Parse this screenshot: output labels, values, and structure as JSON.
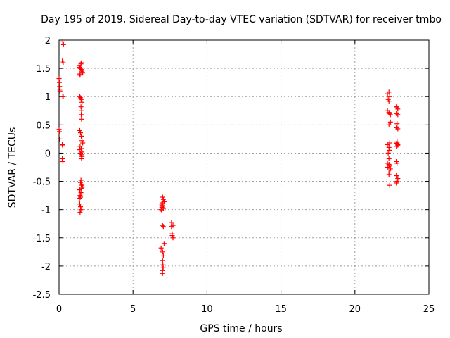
{
  "chart_data": {
    "type": "scatter",
    "title": "Day 195 of 2019, Sidereal Day-to-day VTEC variation (SDTVAR) for receiver tmbo",
    "xlabel": "GPS time / hours",
    "ylabel": "SDTVAR / TECUs",
    "xlim": [
      0,
      25
    ],
    "ylim": [
      -2.5,
      2
    ],
    "xticks": [
      0,
      5,
      10,
      15,
      20,
      25
    ],
    "xtick_labels": [
      "0",
      "5",
      "10",
      "15",
      "20",
      "25"
    ],
    "yticks": [
      -2.5,
      -2,
      -1.5,
      -1,
      -0.5,
      0,
      0.5,
      1,
      1.5,
      2
    ],
    "ytick_labels": [
      "-2.5",
      "-2",
      "-1.5",
      "-1",
      "-0.5",
      "0",
      "0.5",
      "1",
      "1.5",
      "2"
    ],
    "grid": true,
    "series": [
      {
        "name": "SDTVAR",
        "color": "#ff0000",
        "marker": "plus",
        "x": [
          0.25,
          0.3,
          0.22,
          0.28,
          0.0,
          0.02,
          0.04,
          0.05,
          0.06,
          0.25,
          0.28,
          0.0,
          0.02,
          0.05,
          0.22,
          0.25,
          0.22,
          0.26,
          1.35,
          1.4,
          1.45,
          1.5,
          1.55,
          1.6,
          1.38,
          1.42,
          1.48,
          1.52,
          1.58,
          1.4,
          1.45,
          1.5,
          1.55,
          1.48,
          1.52,
          1.5,
          1.52,
          1.4,
          1.45,
          1.5,
          1.55,
          1.6,
          1.42,
          1.5,
          1.55,
          1.38,
          1.45,
          1.5,
          1.55,
          1.52,
          1.48,
          1.45,
          1.5,
          1.55,
          1.6,
          1.52,
          1.48,
          1.42,
          1.45,
          1.4,
          1.45,
          1.48,
          1.42,
          1.4,
          1.38,
          7.0,
          7.05,
          7.1,
          6.95,
          7.0,
          7.05,
          6.9,
          6.95,
          7.0,
          7.05,
          7.1,
          6.9,
          7.0,
          7.05,
          7.0,
          7.02,
          7.04,
          6.98,
          7.0,
          6.95,
          7.0,
          6.95,
          7.6,
          7.7,
          7.65,
          7.7,
          7.6,
          7.65,
          22.2,
          22.3,
          22.35,
          22.4,
          22.3,
          22.25,
          22.35,
          22.2,
          22.3,
          22.4,
          22.3,
          22.35,
          22.2,
          22.3,
          22.35,
          22.25,
          22.3,
          22.2,
          22.3,
          22.35,
          22.2,
          22.4,
          22.3,
          22.3,
          22.35,
          22.8,
          22.85,
          22.9,
          22.8,
          22.9,
          22.85,
          22.8,
          22.9,
          22.85,
          22.8,
          22.9,
          22.8,
          22.85,
          22.9,
          22.8,
          22.85,
          22.8,
          22.9,
          22.85,
          22.8
        ],
        "y": [
          1.97,
          1.92,
          1.63,
          1.6,
          1.32,
          1.25,
          1.18,
          1.13,
          1.1,
          1.0,
          1.0,
          0.42,
          0.38,
          0.25,
          0.15,
          0.13,
          -0.1,
          -0.15,
          1.55,
          1.52,
          1.5,
          1.48,
          1.45,
          1.42,
          1.4,
          1.38,
          1.58,
          1.6,
          1.43,
          1.0,
          0.98,
          0.95,
          0.9,
          0.82,
          0.75,
          0.68,
          0.6,
          0.4,
          0.36,
          0.3,
          0.22,
          0.18,
          0.12,
          0.08,
          0.02,
          0.06,
          0.0,
          -0.03,
          -0.06,
          -0.1,
          -0.48,
          -0.52,
          -0.55,
          -0.57,
          -0.6,
          -0.62,
          -0.7,
          -0.75,
          -0.78,
          -0.9,
          -0.95,
          -1.0,
          -1.05,
          -0.65,
          -0.8,
          -0.78,
          -0.82,
          -0.86,
          -0.9,
          -0.94,
          -0.98,
          -1.0,
          -1.02,
          -1.28,
          -1.3,
          -1.6,
          -1.68,
          -1.75,
          -1.82,
          -1.9,
          -1.98,
          -2.03,
          -2.08,
          -2.13,
          -0.96,
          -0.88,
          -0.92,
          -1.23,
          -1.28,
          -1.43,
          -1.5,
          -1.3,
          -1.46,
          0.75,
          0.72,
          0.7,
          0.68,
          0.92,
          0.95,
          1.0,
          1.05,
          1.08,
          0.55,
          0.5,
          0.18,
          0.15,
          0.1,
          0.05,
          0.0,
          -0.1,
          -0.18,
          -0.2,
          -0.23,
          -0.25,
          -0.28,
          -0.35,
          -0.38,
          -0.57,
          0.82,
          0.8,
          0.78,
          0.7,
          0.68,
          0.52,
          0.45,
          0.43,
          0.2,
          0.17,
          0.15,
          0.12,
          0.18,
          0.14,
          -0.15,
          -0.18,
          -0.4,
          -0.45,
          -0.5,
          -0.53
        ]
      }
    ]
  }
}
